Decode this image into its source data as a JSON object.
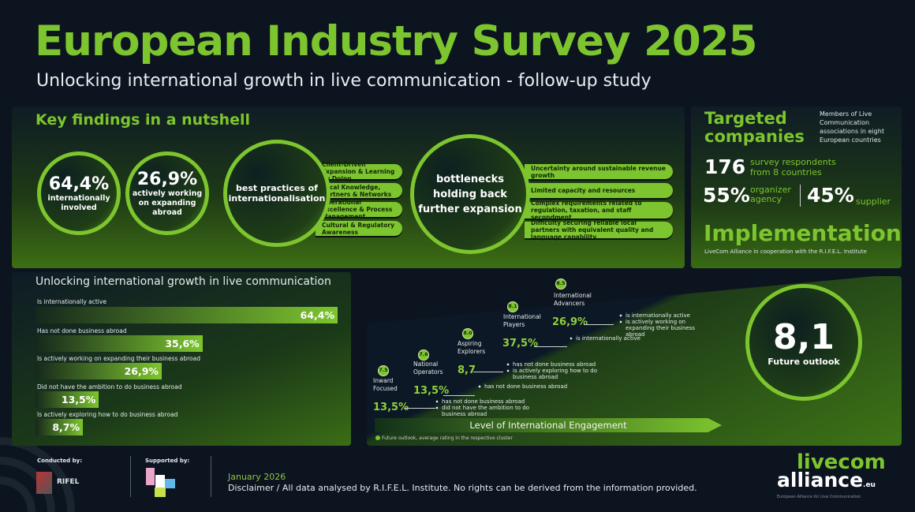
{
  "header": {
    "title": "European Industry Survey 2025",
    "subtitle": "Unlocking international growth in live communication - follow-up study"
  },
  "key_findings": {
    "title": "Key findings in a nutshell",
    "stat1": {
      "value": "64,4%",
      "label_1": "internationally",
      "label_2": "involved"
    },
    "stat2": {
      "value": "26,9%",
      "label_1": "actively working",
      "label_2": "on expanding",
      "label_3": "abroad"
    },
    "best_practices": {
      "title_1": "best practices of",
      "title_2": "internationalisation",
      "items": [
        "Client-Driven Expansion & Learning by Doing",
        "Local Knowledge, Partners & Networks",
        "Operational Excellence & Process Management",
        "Cultural & Regulatory Awareness"
      ]
    },
    "bottlenecks": {
      "title_1": "bottlenecks",
      "title_2": "holding back",
      "title_3": "further expansion",
      "items": [
        "Uncertainty around sustainable revenue growth",
        "Limited capacity and resources",
        "Complex requirements related to regulation, taxation, and staff secondment",
        "Difficulty securing reliable local partners with equivalent quality and language capability"
      ]
    }
  },
  "targeted": {
    "title_1": "Targeted",
    "title_2": "companies",
    "desc": "Members of Live Communication associations in eight European countries",
    "respondents": "176",
    "respondents_label_1": "survey respondents",
    "respondents_label_2": "from 8 countries",
    "organizer_pct": "55%",
    "organizer_label_1": "organizer",
    "organizer_label_2": "agency",
    "supplier_pct": "45%",
    "supplier_label": "supplier",
    "impl_title": "Implementation",
    "impl_text": "LiveCom Alliance in cooperation with the R.I.F.E.L. Institute"
  },
  "chart_data": {
    "type": "bar",
    "title": "Unlocking international growth in live communication",
    "categories": [
      "Is internationally active",
      "Has not done business abroad",
      "Is actively working on expanding their business abroad",
      "Did not have the ambition to do business abroad",
      "Is actively exploring how to do business abroad"
    ],
    "values": [
      64.4,
      35.6,
      26.9,
      13.5,
      8.7
    ],
    "value_labels": [
      "64,4%",
      "35,6%",
      "26,9%",
      "13,5%",
      "8,7%"
    ],
    "unit": "%"
  },
  "clusters": [
    {
      "rating": "7.5",
      "name_1": "Inward",
      "name_2": "Focused",
      "pct": "13,5%",
      "bullets": [
        "has not done business abroad",
        "did not have the ambition to do business abroad"
      ]
    },
    {
      "rating": "7.6",
      "name_1": "National",
      "name_2": "Operators",
      "pct": "13,5%",
      "bullets": [
        "has not done business abroad"
      ]
    },
    {
      "rating": "8.0",
      "name_1": "Aspiring",
      "name_2": "Explorers",
      "pct": "8,7",
      "bullets": [
        "has not done business abroad",
        "is actively exploring how to do business abroad"
      ]
    },
    {
      "rating": "8.1",
      "name_1": "International",
      "name_2": "Players",
      "pct": "37,5%",
      "bullets": [
        "is internationally active"
      ]
    },
    {
      "rating": "8.5",
      "name_1": "International",
      "name_2": "Advancers",
      "pct": "26,9%",
      "bullets": [
        "is internationally active",
        "is actively working on expanding their business abroad"
      ]
    }
  ],
  "engagement_label": "Level of International Engagement",
  "footnote": "Future outlook, average rating in the respective cluster",
  "future": {
    "value": "8,1",
    "label": "Future outlook"
  },
  "footer": {
    "conducted_label": "Conducted by:",
    "conducted_logo": "RIFEL",
    "supported_label": "Supported by:",
    "supported_logo": "boe",
    "date": "January 2026",
    "disclaimer": "Disclaimer / All data analysed by R.I.F.E.L. Institute. No rights can be derived from the information provided.",
    "logo_1": "livecom",
    "logo_2": "alliance",
    "logo_suffix": ".eu",
    "logo_tagline": "European Alliance for Live Communication"
  },
  "colors": {
    "accent": "#7dc52e",
    "background": "#0c1420"
  }
}
